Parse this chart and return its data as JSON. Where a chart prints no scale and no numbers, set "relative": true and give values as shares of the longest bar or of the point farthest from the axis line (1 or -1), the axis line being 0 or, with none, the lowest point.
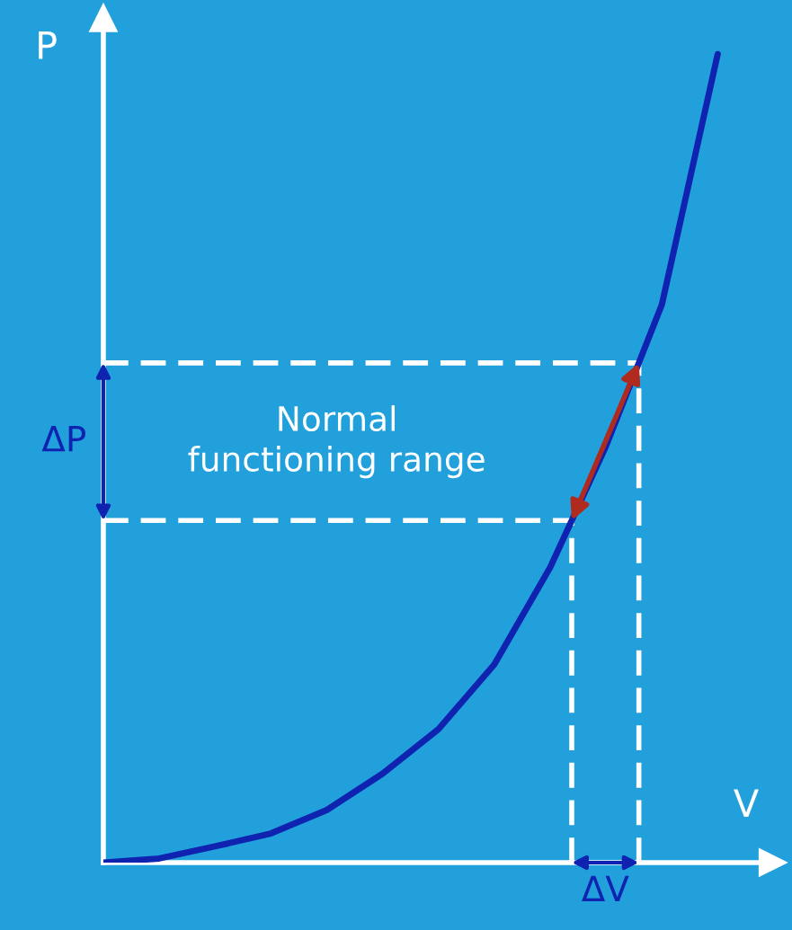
{
  "chart_data": {
    "type": "line",
    "relative": true,
    "xlabel": "V",
    "ylabel": "P",
    "categories": [
      null,
      null,
      null,
      null,
      null,
      null,
      null,
      null,
      null,
      null,
      null,
      null
    ],
    "series": [
      {
        "color": "#0f22b0",
        "values": [
          0,
          0.005,
          0.02,
          0.036,
          0.065,
          0.11,
          0.165,
          0.245,
          0.365,
          0.515,
          0.69,
          1
        ]
      }
    ],
    "ref_lines": [
      {
        "axis": "y",
        "value": 0.423,
        "color": "#ffffff",
        "line_style": "dashed"
      },
      {
        "axis": "y",
        "value": 0.618,
        "color": "#ffffff",
        "line_style": "dashed"
      }
    ],
    "annotations": [
      "Normal\nfunctioning range",
      "ΔP",
      "ΔV"
    ],
    "marker": "none",
    "line_style": "solid"
  }
}
